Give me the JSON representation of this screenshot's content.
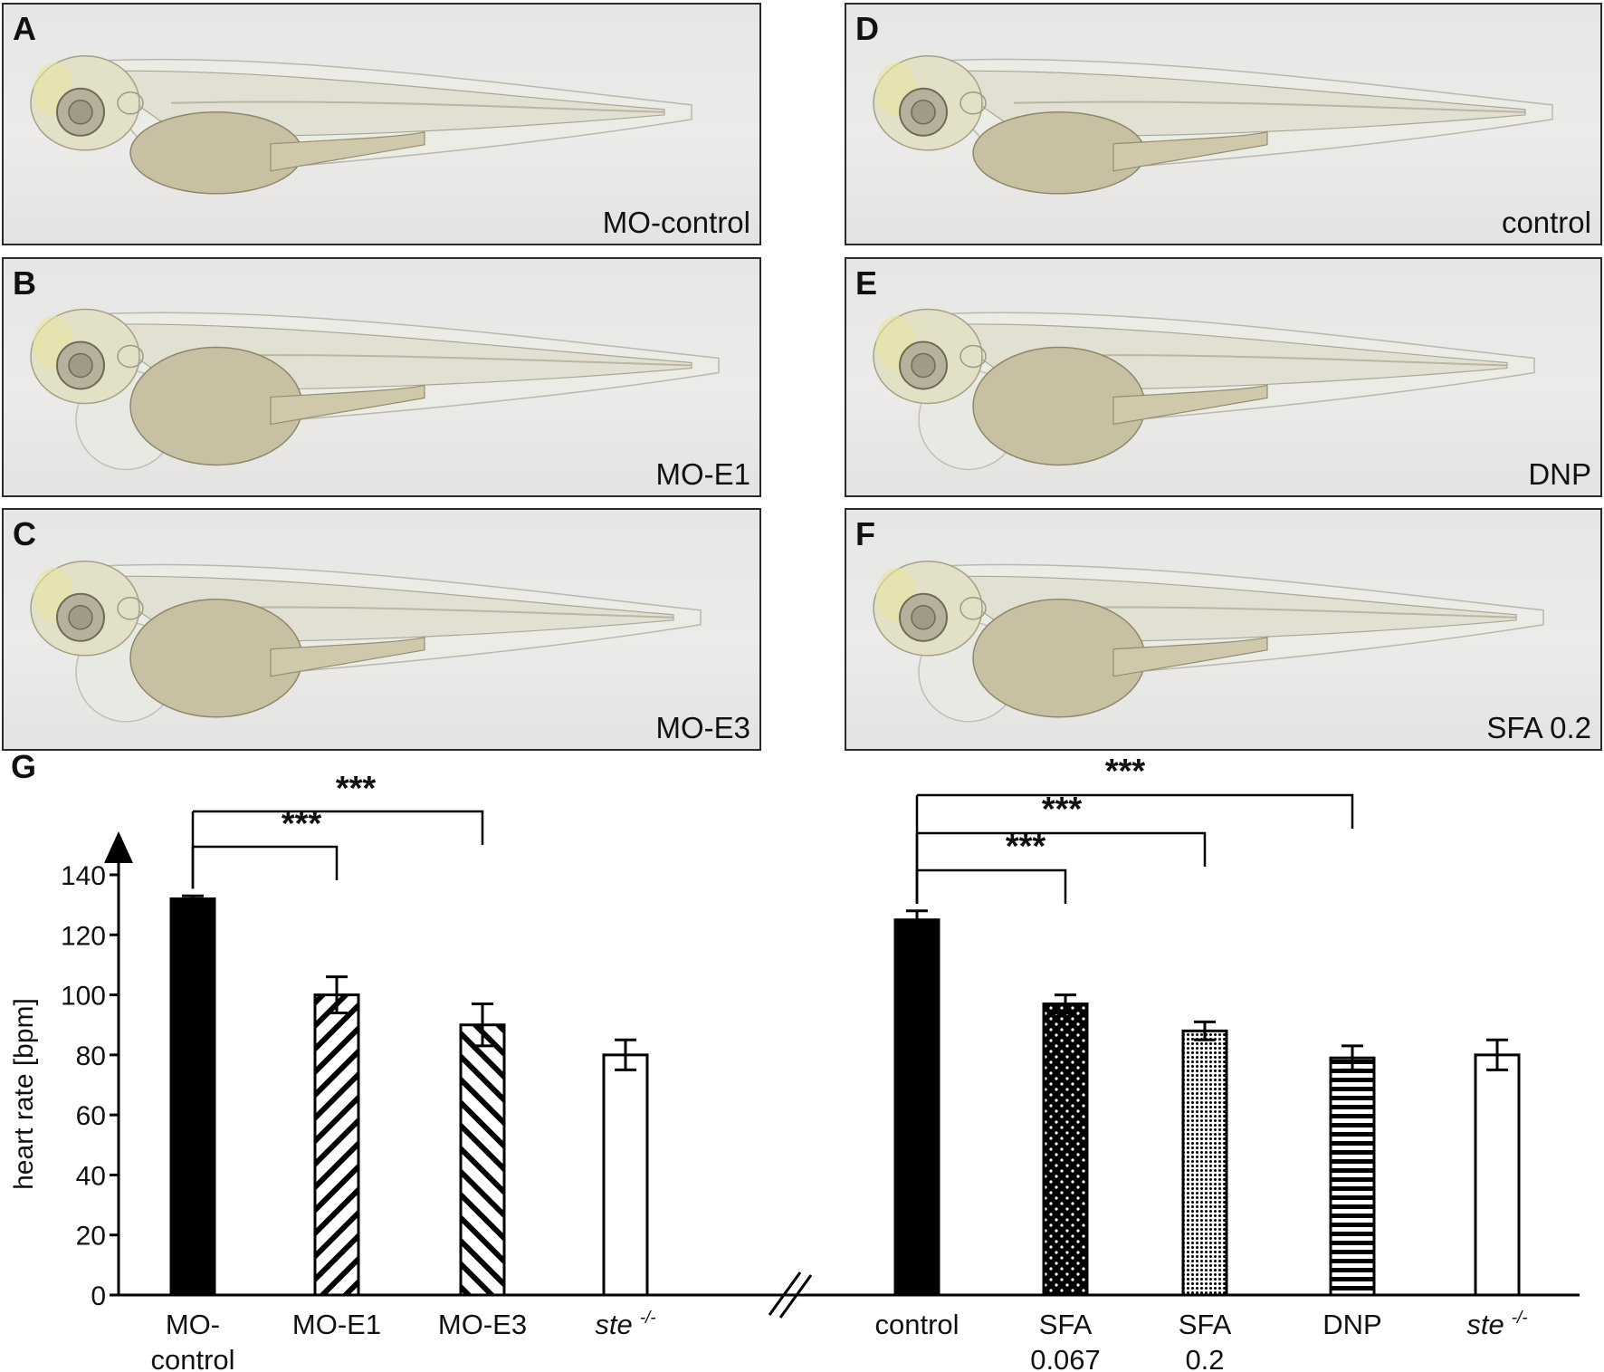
{
  "panels": [
    {
      "letter": "A",
      "label": "MO-control"
    },
    {
      "letter": "B",
      "label": "MO-E1"
    },
    {
      "letter": "C",
      "label": "MO-E3"
    },
    {
      "letter": "D",
      "label": "control"
    },
    {
      "letter": "E",
      "label": "DNP"
    },
    {
      "letter": "F",
      "label": "SFA 0.2"
    }
  ],
  "chart_panel_letter": "G",
  "chart_data": {
    "type": "bar",
    "ylabel": "heart rate [bpm]",
    "ylim": [
      0,
      140
    ],
    "yticks": [
      0,
      20,
      40,
      60,
      80,
      100,
      120,
      140
    ],
    "axis_break": true,
    "categories": [
      "MO-control",
      "MO-E1",
      "MO-E3",
      "ste -/-",
      "control",
      "SFA 0.067",
      "SFA 0.2",
      "DNP",
      "ste -/-"
    ],
    "category_labels": [
      {
        "line1": "MO-",
        "line2": "control",
        "italic": false
      },
      {
        "line1": "MO-E1",
        "line2": "",
        "italic": false
      },
      {
        "line1": "MO-E3",
        "line2": "",
        "italic": false
      },
      {
        "line1": "ste",
        "sup": "-/-",
        "line2": "",
        "italic": true
      },
      {
        "line1": "control",
        "line2": "",
        "italic": false
      },
      {
        "line1": "SFA",
        "line2": "0.067",
        "italic": false
      },
      {
        "line1": "SFA",
        "line2": "0.2",
        "italic": false
      },
      {
        "line1": "DNP",
        "line2": "",
        "italic": false
      },
      {
        "line1": "ste",
        "sup": "-/-",
        "line2": "",
        "italic": true
      }
    ],
    "values": [
      132,
      100,
      90,
      80,
      125,
      97,
      88,
      79,
      80
    ],
    "errors": [
      1,
      6,
      7,
      5,
      3,
      3,
      3,
      4,
      5
    ],
    "fills": [
      "solid",
      "diag-up",
      "diag-down",
      "white",
      "solid",
      "dots-sparse",
      "dots-dense",
      "horizontal",
      "white"
    ],
    "significance": [
      {
        "from": 0,
        "to": 1,
        "label": "***"
      },
      {
        "from": 0,
        "to": 2,
        "label": "***"
      },
      {
        "from": 4,
        "to": 5,
        "label": "***"
      },
      {
        "from": 4,
        "to": 6,
        "label": "***"
      },
      {
        "from": 4,
        "to": 7,
        "label": "***"
      }
    ]
  }
}
